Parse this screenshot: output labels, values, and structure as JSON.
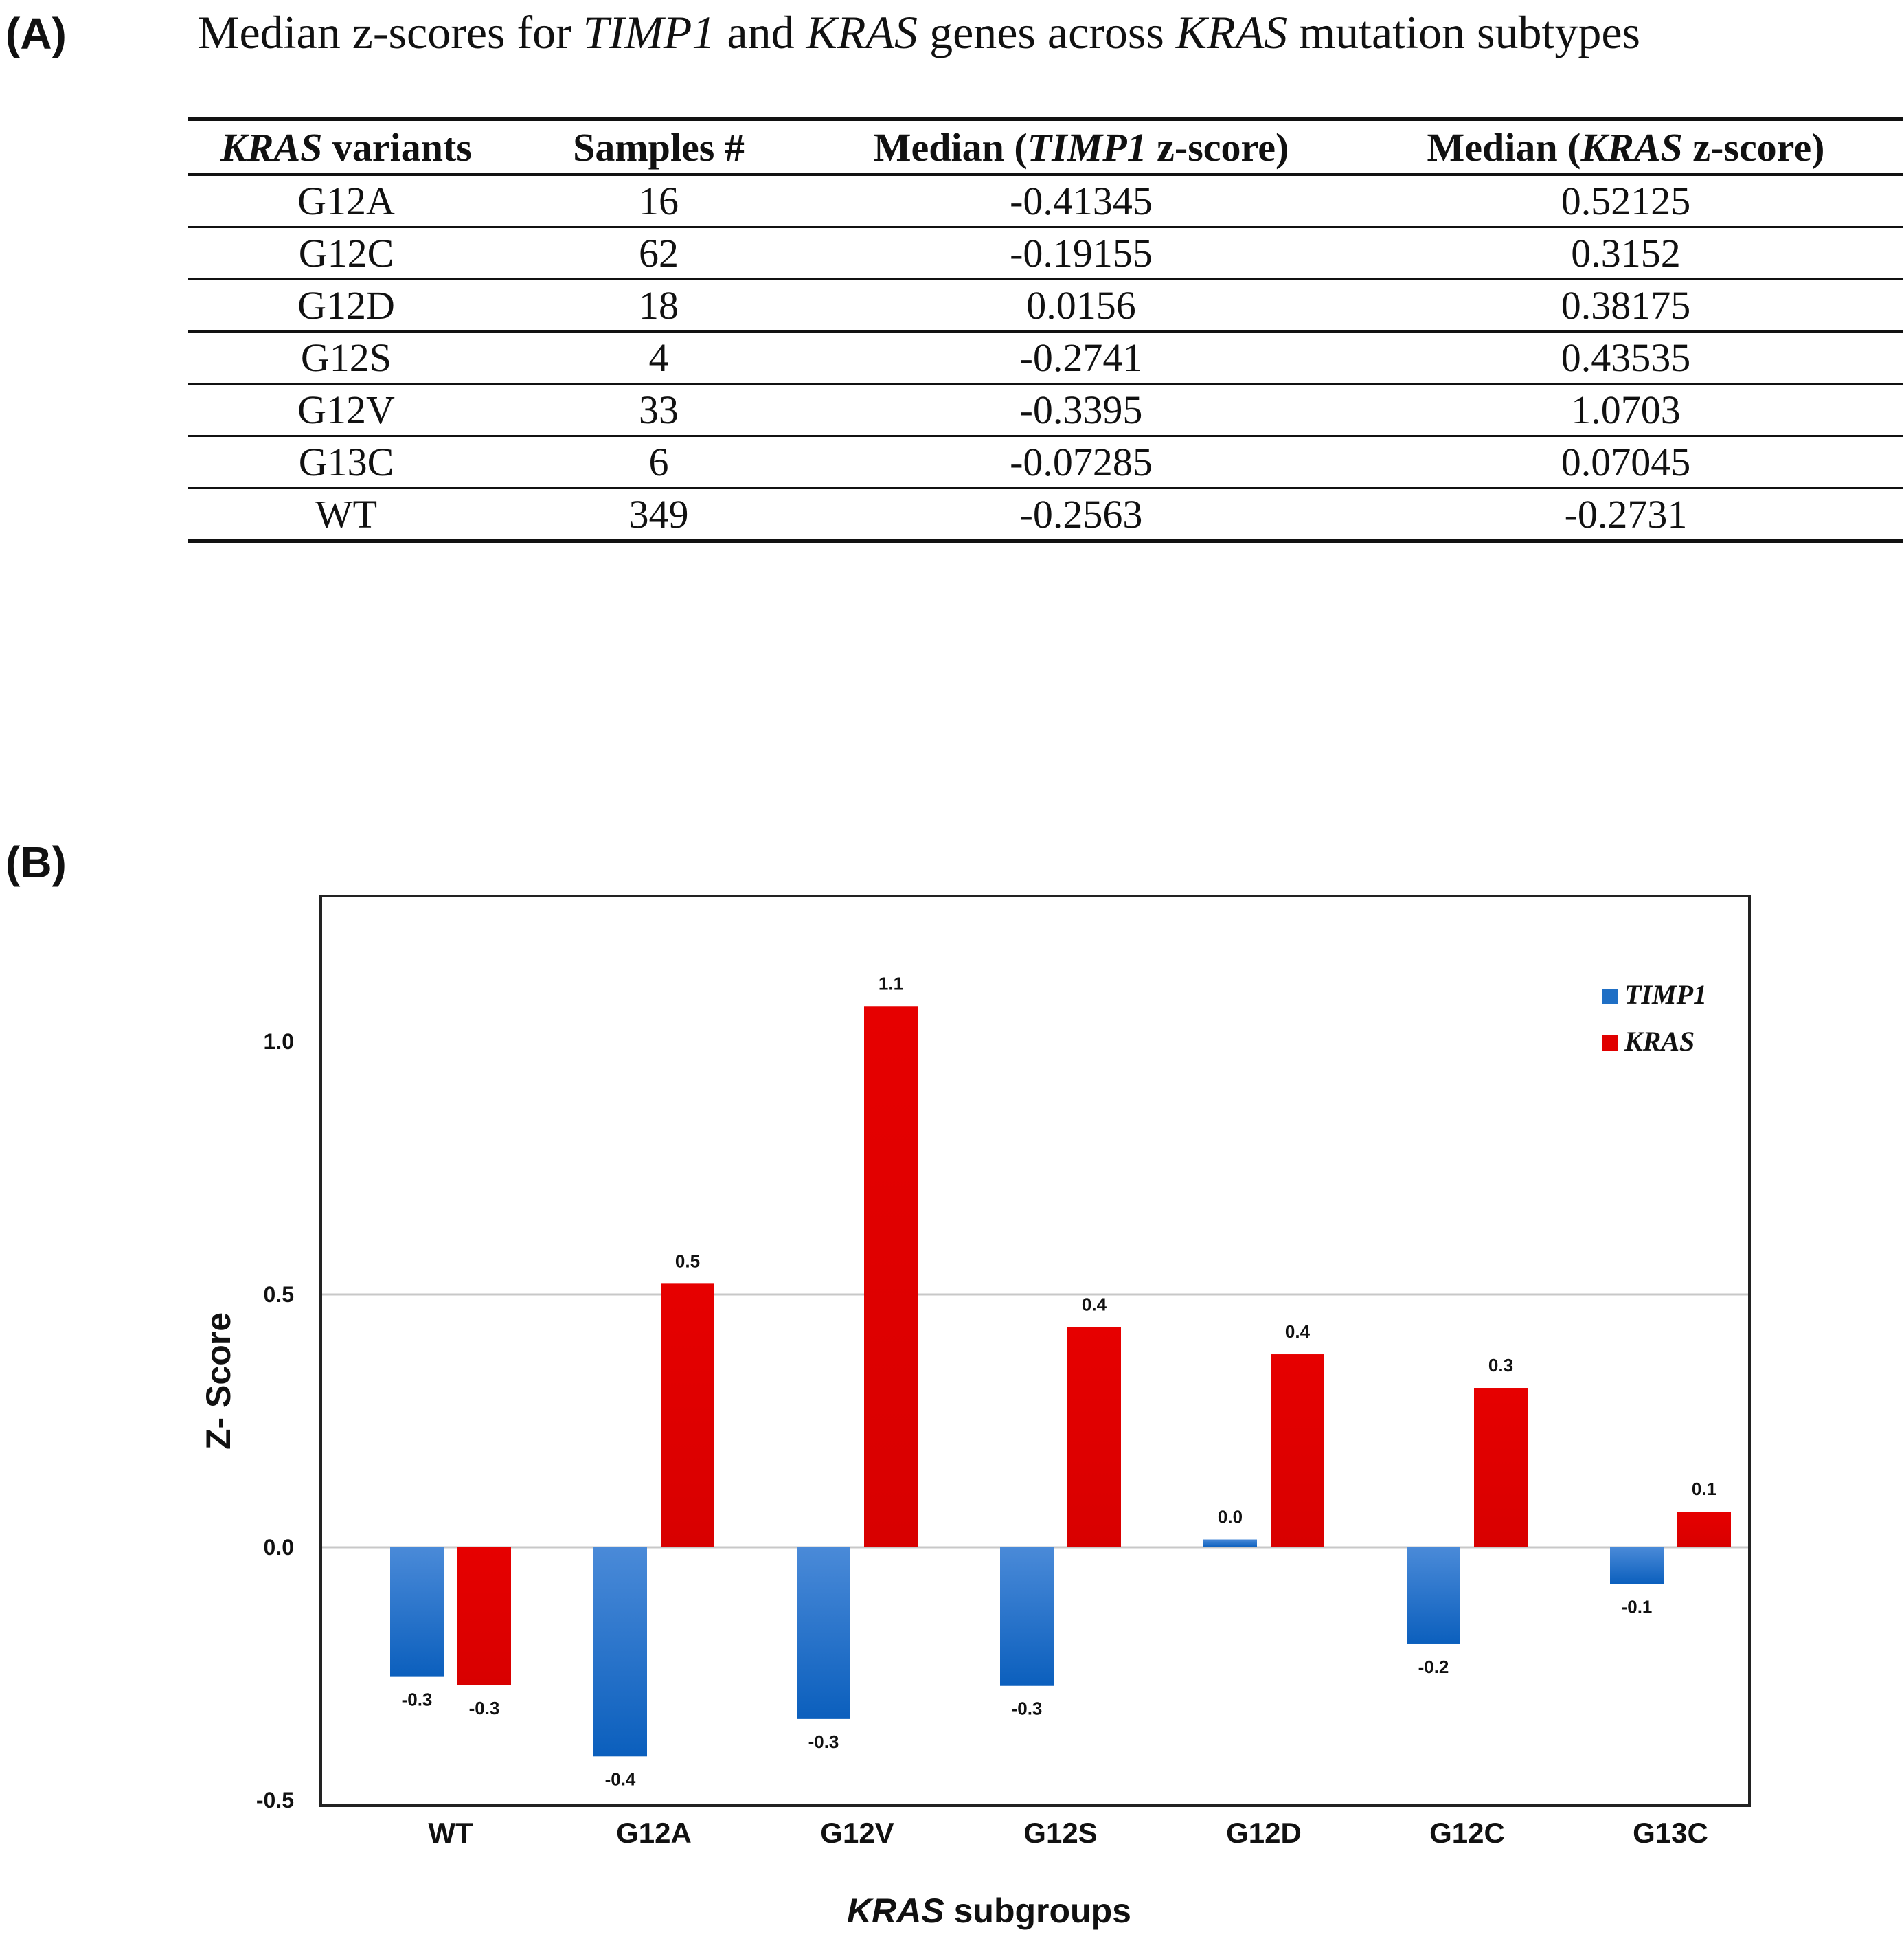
{
  "panel_a": {
    "label": "(A)",
    "title": {
      "p1": "Median z-scores for ",
      "gene1": "TIMP1",
      "p2": " and ",
      "gene2": "KRAS",
      "p3": " genes across ",
      "gene3": "KRAS",
      "p4": " mutation subtypes"
    },
    "headers": {
      "c1_italic": "KRAS",
      "c1_rest": " variants",
      "c2": "Samples #",
      "c3_pre": "Median (",
      "c3_italic": "TIMP1",
      "c3_post": " z-score)",
      "c4_pre": "Median (",
      "c4_italic": "KRAS",
      "c4_post": " z-score)"
    },
    "rows": [
      [
        "G12A",
        "16",
        "-0.41345",
        "0.52125"
      ],
      [
        "G12C",
        "62",
        "-0.19155",
        "0.3152"
      ],
      [
        "G12D",
        "18",
        "0.0156",
        "0.38175"
      ],
      [
        "G12S",
        "4",
        "-0.2741",
        "0.43535"
      ],
      [
        "G12V",
        "33",
        "-0.3395",
        "1.0703"
      ],
      [
        "G13C",
        "6",
        "-0.07285",
        "0.07045"
      ],
      [
        "WT",
        "349",
        "-0.2563",
        "-0.2731"
      ]
    ]
  },
  "panel_b": {
    "label": "(B)"
  },
  "chart_data": {
    "type": "bar",
    "title": "",
    "categories": [
      "WT",
      "G12A",
      "G12V",
      "G12S",
      "G12D",
      "G12C",
      "G13C"
    ],
    "series": [
      {
        "name": "TIMP1",
        "color": "#1f6fc5",
        "values": [
          -0.2563,
          -0.41345,
          -0.3395,
          -0.2741,
          0.0156,
          -0.19155,
          -0.07285
        ],
        "labels": [
          "-0.3",
          "-0.4",
          "-0.3",
          "-0.3",
          "0.0",
          "-0.2",
          "-0.1"
        ]
      },
      {
        "name": "KRAS",
        "color": "#e00000",
        "values": [
          -0.2731,
          0.52125,
          1.0703,
          0.43535,
          0.38175,
          0.3152,
          0.07045
        ],
        "labels": [
          "-0.3",
          "0.5",
          "1.1",
          "0.4",
          "0.4",
          "0.3",
          "0.1"
        ]
      }
    ],
    "xlabel_italic": "KRAS",
    "xlabel_rest": " subgroups",
    "ylabel": "Z- Score",
    "ylim": [
      -0.5,
      1.3
    ],
    "yticks": [
      -0.5,
      0.0,
      0.5,
      1.0
    ],
    "ytick_labels": [
      "-0.5",
      "0.0",
      "0.5",
      "1.0"
    ],
    "gridlines": [
      0.0,
      0.5
    ],
    "legend_position": "top-right"
  }
}
